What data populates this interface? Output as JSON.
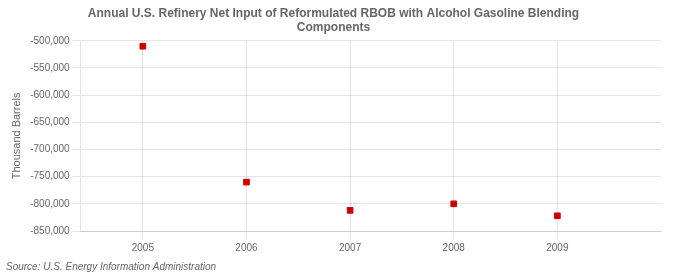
{
  "chart_data": {
    "type": "scatter",
    "title": "Annual U.S. Refinery Net Input of Reformulated RBOB with Alcohol Gasoline Blending\nComponents",
    "ylabel": "Thousand Barrels",
    "source": "Source: U.S. Energy Information Administration",
    "x": [
      2005,
      2006,
      2007,
      2008,
      2009
    ],
    "values": [
      -510000,
      -760000,
      -812000,
      -800000,
      -822000
    ],
    "color": "#cc0000",
    "marker": "square",
    "xlim": [
      2004.4,
      2010.0
    ],
    "xticks": [
      2005,
      2006,
      2007,
      2008,
      2009
    ],
    "ylim": [
      -850000,
      -500000
    ],
    "yticks": [
      {
        "value": -500000,
        "label": "-500,000"
      },
      {
        "value": -550000,
        "label": "-550,000"
      },
      {
        "value": -600000,
        "label": "-600,000"
      },
      {
        "value": -650000,
        "label": "-650,000"
      },
      {
        "value": -700000,
        "label": "-700,000"
      },
      {
        "value": -750000,
        "label": "-750,000"
      },
      {
        "value": -800000,
        "label": "-800,000"
      },
      {
        "value": -850000,
        "label": "-850,000"
      }
    ],
    "grid": true
  }
}
